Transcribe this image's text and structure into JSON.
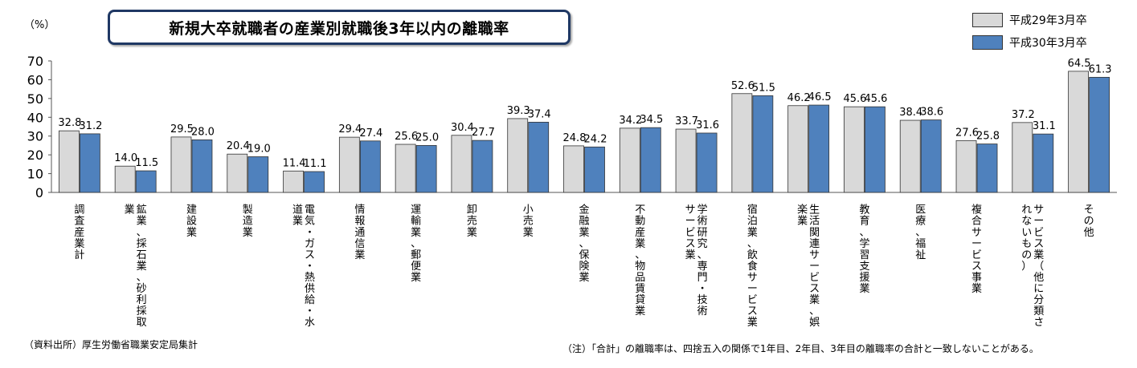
{
  "header": {
    "title": "新規大卒就職者の産業別就職後3年以内の離職率",
    "unit": "（%）"
  },
  "legend": [
    {
      "label": "平成29年3月卒",
      "color": "#d9d9d9"
    },
    {
      "label": "平成30年3月卒",
      "color": "#4f81bd"
    }
  ],
  "footer": {
    "source": "（資料出所）厚生労働省職業安定局集計",
    "note": "（注）「合計」の離職率は、四捨五入の関係で1年目、2年目、3年目の離職率の合計と一致しないことがある。"
  },
  "chart_data": {
    "type": "bar",
    "title": "新規大卒就職者の産業別就職後3年以内の離職率",
    "ylabel": "（%）",
    "ylim": [
      0,
      70
    ],
    "yticks": [
      0,
      10,
      20,
      30,
      40,
      50,
      60,
      70
    ],
    "legend_position": "top-right",
    "grid": false,
    "categories": [
      [
        "調査産業計"
      ],
      [
        "鉱業、採石業、砂利採取",
        "業"
      ],
      [
        "建設業"
      ],
      [
        "製造業"
      ],
      [
        "電気・ガス・熱供給・水",
        "道業"
      ],
      [
        "情報通信業"
      ],
      [
        "運輸業、郵便業"
      ],
      [
        "卸売業"
      ],
      [
        "小売業"
      ],
      [
        "金融業、保険業"
      ],
      [
        "不動産業、物品賃貸業"
      ],
      [
        "学術研究、専門・技術",
        "サービス業"
      ],
      [
        "宿泊業、飲食サービス業"
      ],
      [
        "生活関連サービス業、娯",
        "楽業"
      ],
      [
        "教育、学習支援業"
      ],
      [
        "医療、福祉"
      ],
      [
        "複合サービス事業"
      ],
      [
        "サービス業（他に分類さ",
        "れないもの）"
      ],
      [
        "その他"
      ]
    ],
    "series": [
      {
        "name": "平成29年3月卒",
        "color": "#d9d9d9",
        "values": [
          32.8,
          14.0,
          29.5,
          20.4,
          11.4,
          29.4,
          25.6,
          30.4,
          39.3,
          24.8,
          34.2,
          33.7,
          52.6,
          46.2,
          45.6,
          38.4,
          27.6,
          37.2,
          64.5
        ]
      },
      {
        "name": "平成30年3月卒",
        "color": "#4f81bd",
        "values": [
          31.2,
          11.5,
          28.0,
          19.0,
          11.1,
          27.4,
          25.0,
          27.7,
          37.4,
          24.2,
          34.5,
          31.6,
          51.5,
          46.5,
          45.6,
          38.6,
          25.8,
          31.1,
          61.3
        ]
      }
    ]
  }
}
